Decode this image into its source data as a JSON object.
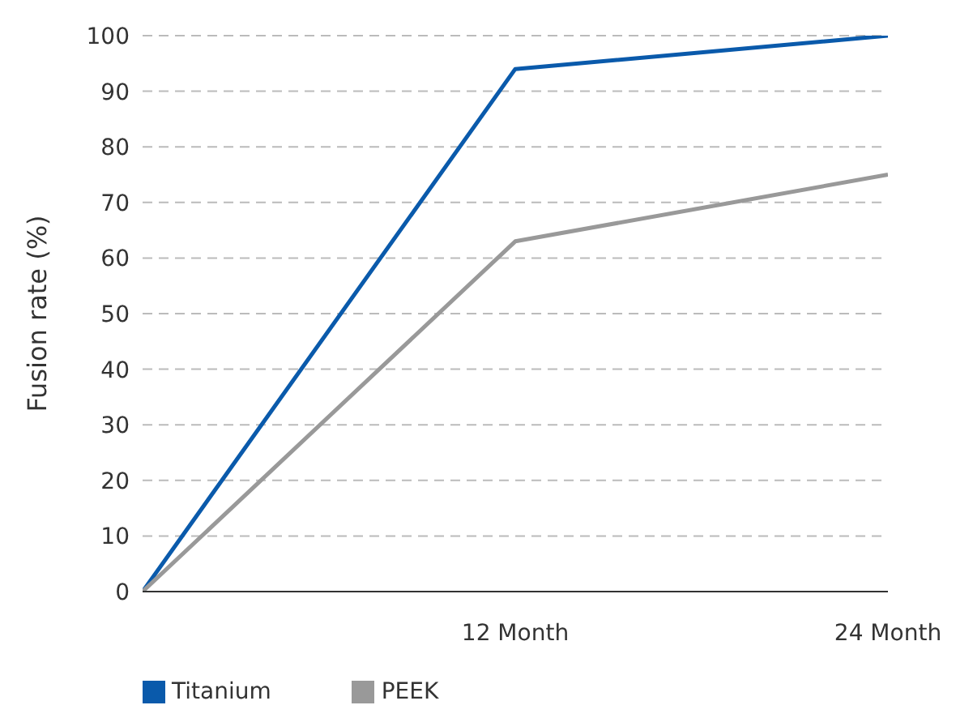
{
  "chart_data": {
    "type": "line",
    "ylabel": "Fusion rate (%)",
    "x": [
      0,
      12,
      24
    ],
    "xlim": [
      0,
      24
    ],
    "xticks": [
      {
        "value": 12,
        "label": "12 Month"
      },
      {
        "value": 24,
        "label": "24 Month"
      }
    ],
    "ylim": [
      0,
      100
    ],
    "yticks": [
      0,
      10,
      20,
      30,
      40,
      50,
      60,
      70,
      80,
      90,
      100
    ],
    "series": [
      {
        "name": "Titanium",
        "color": "#0a5aab",
        "values": [
          0,
          94,
          100
        ]
      },
      {
        "name": "PEEK",
        "color": "#999999",
        "values": [
          0,
          63,
          75
        ]
      }
    ],
    "grid": "y",
    "legend": "bottom left",
    "marker": "none",
    "line_style": "solid"
  }
}
